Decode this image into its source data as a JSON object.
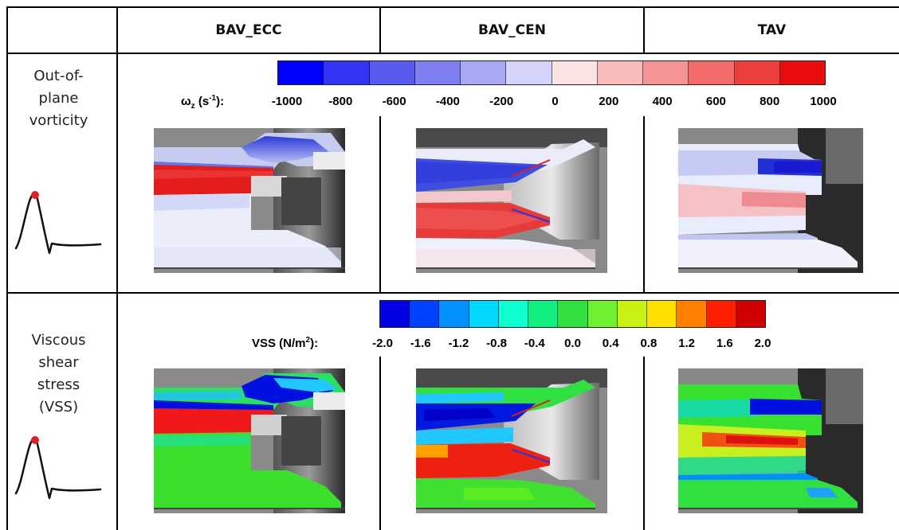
{
  "columns": [
    "BAV_ECC",
    "BAV_CEN",
    "TAV"
  ],
  "rows": [
    {
      "label_lines": [
        "Out-of-",
        "plane",
        "vorticity"
      ]
    },
    {
      "label_lines": [
        "Viscous",
        "shear",
        "stress",
        "(VSS)"
      ]
    }
  ],
  "vorticity_colorbar": {
    "label_symbol": "ω",
    "label_sub": "z",
    "label_unit_open": "(s",
    "label_unit_exp": "-1",
    "label_unit_close": "):",
    "ticks": [
      "-1000",
      "-800",
      "-600",
      "-400",
      "-200",
      "0",
      "200",
      "400",
      "600",
      "800",
      "1000"
    ],
    "colors": [
      "#0000ff",
      "#3434f5",
      "#5a5af0",
      "#7f7ff2",
      "#a8a8f5",
      "#d4d4fa",
      "#fbe3e3",
      "#f8bcbc",
      "#f59494",
      "#f26a6a",
      "#ee3f3f",
      "#e80c0c"
    ]
  },
  "vss_colorbar": {
    "label_text": "VSS (N/m",
    "label_exp": "2",
    "label_close": "):",
    "ticks": [
      "-2.0",
      "-1.6",
      "-1.2",
      "-0.8",
      "-0.4",
      "0.0",
      "0.4",
      "0.8",
      "1.2",
      "1.6",
      "2.0"
    ],
    "colors": [
      "#0000e0",
      "#0040ff",
      "#0090ff",
      "#00d8ff",
      "#10ffd0",
      "#10f080",
      "#30e040",
      "#70f030",
      "#c8f010",
      "#ffe000",
      "#ff8000",
      "#ff2000",
      "#d00000"
    ]
  }
}
